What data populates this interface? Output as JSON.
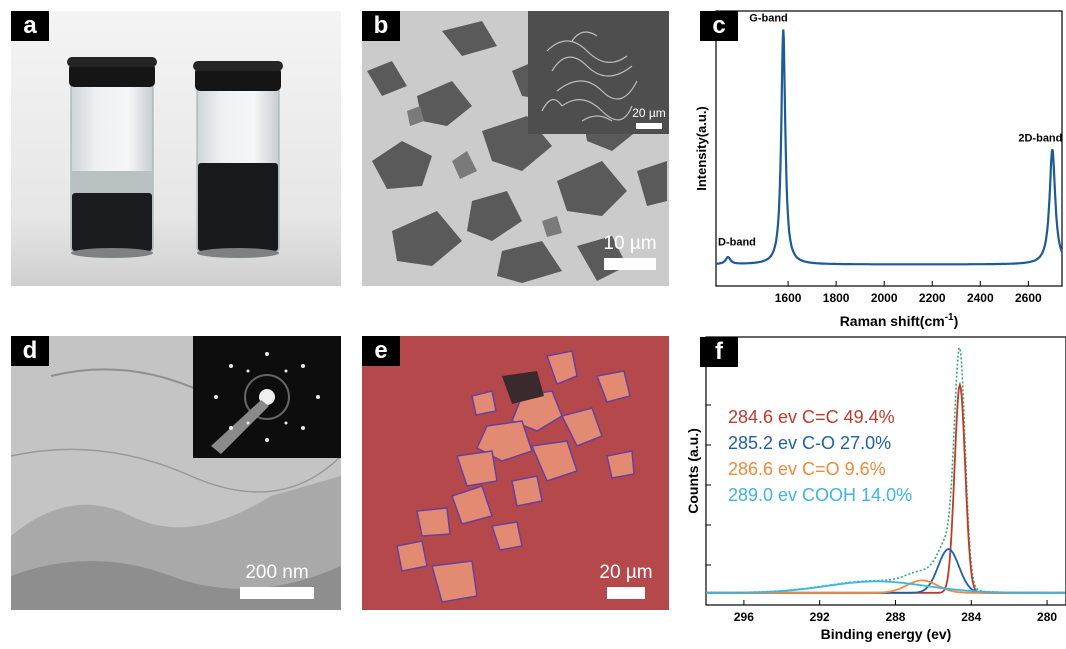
{
  "panels": {
    "a": {
      "label": "a"
    },
    "b": {
      "label": "b",
      "scale_bar": "10 µm",
      "inset_scale_bar": "20 µm"
    },
    "c": {
      "label": "c"
    },
    "d": {
      "label": "d",
      "scale_bar": "200 nm"
    },
    "e": {
      "label": "e",
      "scale_bar": "20 µm"
    },
    "f": {
      "label": "f"
    }
  },
  "colors": {
    "raman_line": "#1d5a9a",
    "cc": "#c0392b",
    "co": "#1f5fa8",
    "ceo": "#f08a3c",
    "cooh": "#3bb5e6",
    "envelope": "#2eaa7a",
    "substrate_e": "#b5484b"
  },
  "chart_data": [
    {
      "type": "line",
      "panel": "c",
      "xlabel": "Raman shift",
      "xlabel_unit": "cm",
      "xlabel_unit_exp": "-1",
      "ylabel": "Intensity(a.u.)",
      "xlim": [
        1300,
        2740
      ],
      "xticks": [
        1600,
        1800,
        2000,
        2200,
        2400,
        2600
      ],
      "annotations": [
        {
          "text": "D-band",
          "x": 1350
        },
        {
          "text": "G-band",
          "x": 1580
        },
        {
          "text": "2D-band",
          "x": 2700
        }
      ],
      "series": [
        {
          "peaks": [
            {
              "center": 1350,
              "height": 0.03,
              "width": 12
            },
            {
              "center": 1580,
              "height": 1.0,
              "width": 10
            },
            {
              "center": 2700,
              "height": 0.49,
              "width": 14
            }
          ],
          "baseline": 0.015
        }
      ]
    },
    {
      "type": "line",
      "panel": "f",
      "xlabel": "Binding energy (ev)",
      "ylabel": "Counts (a.u.)",
      "xlim": [
        298,
        279
      ],
      "xticks": [
        296,
        292,
        288,
        284,
        280
      ],
      "legend": [
        {
          "text": "284.6 ev C=C 49.4%",
          "color_key": "cc"
        },
        {
          "text": "285.2 ev C-O 27.0%",
          "color_key": "co"
        },
        {
          "text": "286.6 ev C=O 9.6%",
          "color_key": "ceo"
        },
        {
          "text": "289.0 ev COOH 14.0%",
          "color_key": "cooh"
        }
      ],
      "series": [
        {
          "color_key": "cc",
          "center": 284.6,
          "height": 1.0,
          "width": 0.28
        },
        {
          "color_key": "co",
          "center": 285.2,
          "height": 0.21,
          "width": 0.55
        },
        {
          "color_key": "ceo",
          "center": 286.6,
          "height": 0.06,
          "width": 0.8
        },
        {
          "color_key": "cooh",
          "center": 289.0,
          "height": 0.055,
          "width": 2.6
        }
      ]
    }
  ]
}
